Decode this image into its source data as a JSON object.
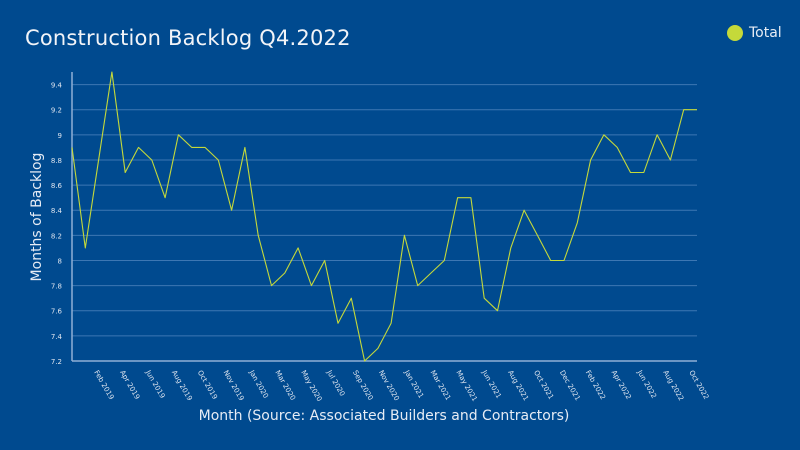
{
  "chart_data": {
    "type": "line",
    "title": "Construction Backlog Q4.2022",
    "xlabel": "Month (Source: Associated Builders and Contractors)",
    "ylabel": "Months of Backlog",
    "ylim": [
      7.2,
      9.5
    ],
    "yticks": [
      7.2,
      7.4,
      7.6,
      7.8,
      8,
      8.2,
      8.4,
      8.6,
      8.8,
      9,
      9.2,
      9.4
    ],
    "xtick_labels": [
      "Feb 2019",
      "Apr 2019",
      "Jun 2019",
      "Aug 2019",
      "Oct 2019",
      "Nov 2019",
      "Jan 2020",
      "Mar 2020",
      "May 2020",
      "Jul 2020",
      "Sep 2020",
      "Nov 2020",
      "Jan 2021",
      "Mar 2021",
      "May 2021",
      "Jun 2021",
      "Aug 2021",
      "Oct 2021",
      "Dec 2021",
      "Feb 2022",
      "Apr 2022",
      "Jun 2022",
      "Aug 2022",
      "Oct 2022"
    ],
    "legend_position": "top-right",
    "grid": true,
    "colors": {
      "background": "#004a8f",
      "line": "#c5d93a",
      "grid": "#3d77b3"
    },
    "series": [
      {
        "name": "Total",
        "values": [
          8.9,
          8.1,
          8.8,
          9.5,
          8.7,
          8.9,
          8.8,
          8.5,
          9.0,
          8.9,
          8.9,
          8.8,
          8.4,
          8.9,
          8.2,
          7.8,
          7.9,
          8.1,
          7.8,
          8.0,
          7.5,
          7.7,
          7.2,
          7.3,
          7.5,
          8.2,
          7.8,
          7.9,
          8.0,
          8.5,
          8.5,
          7.7,
          7.6,
          8.1,
          8.4,
          8.2,
          8.0,
          8.0,
          8.3,
          8.8,
          9.0,
          8.9,
          8.7,
          8.7,
          9.0,
          8.8,
          9.2,
          9.2
        ]
      }
    ]
  }
}
